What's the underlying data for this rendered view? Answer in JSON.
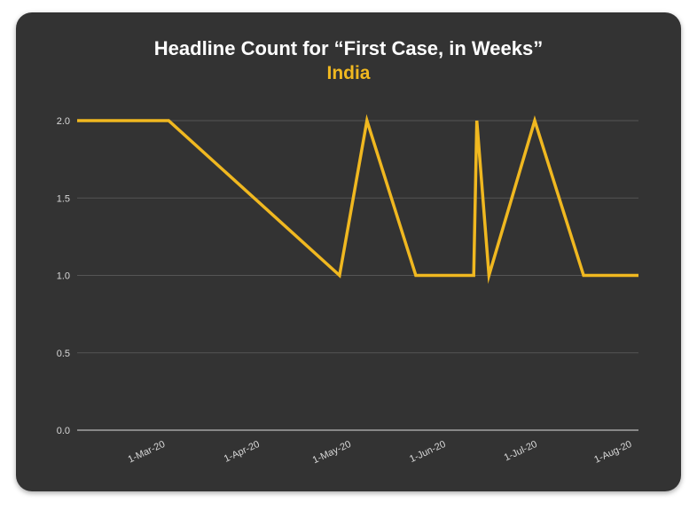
{
  "title": "Headline Count for “First Case, in Weeks”",
  "subtitle": "India",
  "colors": {
    "background": "#333333",
    "line": "#f0b820",
    "grid": "#555555",
    "axis": "#bbbbbb",
    "text": "#ffffff"
  },
  "chart_data": {
    "type": "line",
    "title": "Headline Count for “First Case, in Weeks”",
    "subtitle": "India",
    "xlabel": "",
    "ylabel": "",
    "ylim": [
      0,
      2
    ],
    "y_ticks": [
      "0.0",
      "0.5",
      "1.0",
      "1.5",
      "2.0"
    ],
    "x_ticks": [
      "1-Mar-20",
      "1-Apr-20",
      "1-May-20",
      "1-Jun-20",
      "1-Jul-20",
      "1-Aug-20"
    ],
    "x_tick_dates": [
      "2020-03-01",
      "2020-04-01",
      "2020-05-01",
      "2020-06-01",
      "2020-07-01",
      "2020-08-01"
    ],
    "grid": true,
    "legend": "none",
    "series": [
      {
        "color": "#f0b820",
        "points": [
          {
            "x": "2020-02-01",
            "y": 2
          },
          {
            "x": "2020-03-02",
            "y": 2
          },
          {
            "x": "2020-04-27",
            "y": 1
          },
          {
            "x": "2020-05-06",
            "y": 2
          },
          {
            "x": "2020-05-22",
            "y": 1
          },
          {
            "x": "2020-06-10",
            "y": 1
          },
          {
            "x": "2020-06-11",
            "y": 2
          },
          {
            "x": "2020-06-15",
            "y": 1
          },
          {
            "x": "2020-06-30",
            "y": 2
          },
          {
            "x": "2020-07-16",
            "y": 1
          },
          {
            "x": "2020-08-03",
            "y": 1
          }
        ]
      }
    ]
  }
}
